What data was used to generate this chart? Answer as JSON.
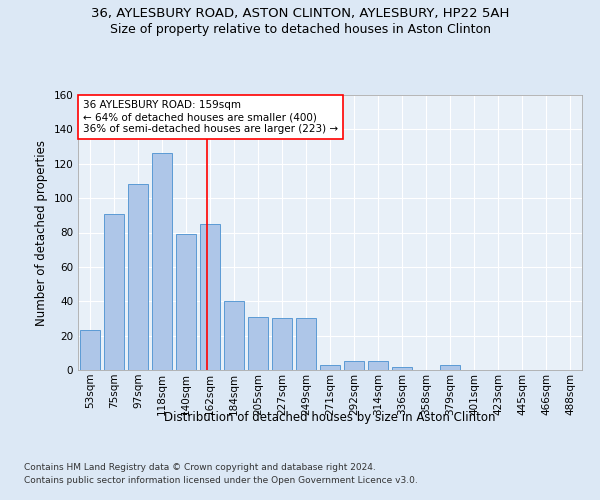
{
  "title_line1": "36, AYLESBURY ROAD, ASTON CLINTON, AYLESBURY, HP22 5AH",
  "title_line2": "Size of property relative to detached houses in Aston Clinton",
  "xlabel": "Distribution of detached houses by size in Aston Clinton",
  "ylabel": "Number of detached properties",
  "categories": [
    "53sqm",
    "75sqm",
    "97sqm",
    "118sqm",
    "140sqm",
    "162sqm",
    "184sqm",
    "205sqm",
    "227sqm",
    "249sqm",
    "271sqm",
    "292sqm",
    "314sqm",
    "336sqm",
    "358sqm",
    "379sqm",
    "401sqm",
    "423sqm",
    "445sqm",
    "466sqm",
    "488sqm"
  ],
  "values": [
    23,
    91,
    108,
    126,
    79,
    85,
    40,
    31,
    30,
    30,
    3,
    5,
    5,
    2,
    0,
    3,
    0,
    0,
    0,
    0,
    0
  ],
  "bar_color": "#aec6e8",
  "bar_edge_color": "#5b9bd5",
  "ylim": [
    0,
    160
  ],
  "yticks": [
    0,
    20,
    40,
    60,
    80,
    100,
    120,
    140,
    160
  ],
  "property_label": "36 AYLESBURY ROAD: 159sqm",
  "annotation_line1": "← 64% of detached houses are smaller (400)",
  "annotation_line2": "36% of semi-detached houses are larger (223) →",
  "footer_line1": "Contains HM Land Registry data © Crown copyright and database right 2024.",
  "footer_line2": "Contains public sector information licensed under the Open Government Licence v3.0.",
  "bg_color": "#dce8f5",
  "plot_bg_color": "#e8f0f8",
  "title_fontsize": 9.5,
  "subtitle_fontsize": 9,
  "axis_label_fontsize": 8.5,
  "tick_fontsize": 7.5,
  "annotation_fontsize": 7.5,
  "footer_fontsize": 6.5
}
